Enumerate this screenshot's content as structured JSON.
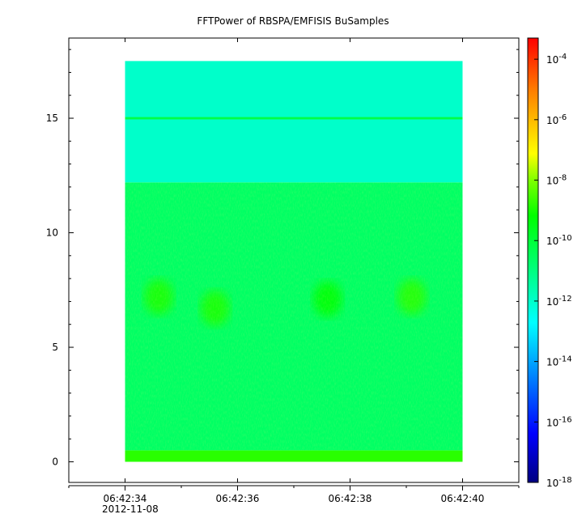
{
  "chart_data": {
    "type": "heatmap",
    "title": "FFTPower of RBSPA/EMFISIS  BuSamples",
    "xlabel": "",
    "ylabel": "",
    "x_ticks": [
      "06:42:34",
      "06:42:36",
      "06:42:38",
      "06:42:40"
    ],
    "x_tick_date": "2012-11-08",
    "x_range": [
      33.0,
      41.0
    ],
    "x_data_range": [
      34.0,
      40.0
    ],
    "y_ticks": [
      "0",
      "5",
      "10",
      "15"
    ],
    "y_tick_values": [
      0,
      5,
      10,
      15
    ],
    "y_range": [
      -0.9,
      18.5
    ],
    "y_data_range": [
      0.0,
      17.5
    ],
    "colorbar": {
      "scale": "log",
      "range": [
        -18,
        -3.3
      ],
      "tick_exponents": [
        -18,
        -16,
        -14,
        -12,
        -10,
        -8,
        -6,
        -4
      ],
      "tick_base": "10"
    },
    "regions": [
      {
        "y": [
          0.0,
          0.5
        ],
        "log_power": -8.8
      },
      {
        "y": [
          0.5,
          12.2
        ],
        "log_power": -10.6
      },
      {
        "y": [
          12.2,
          17.5
        ],
        "log_power": -12.0
      },
      {
        "y": [
          14.95,
          15.05
        ],
        "log_power": -10.2
      }
    ],
    "bursts": [
      {
        "x": 34.6,
        "y": 7.2,
        "log_power": -8.9
      },
      {
        "x": 35.6,
        "y": 6.7,
        "log_power": -8.9
      },
      {
        "x": 37.6,
        "y": 7.1,
        "log_power": -9.2
      },
      {
        "x": 39.1,
        "y": 7.2,
        "log_power": -8.8
      }
    ],
    "grid": false
  }
}
